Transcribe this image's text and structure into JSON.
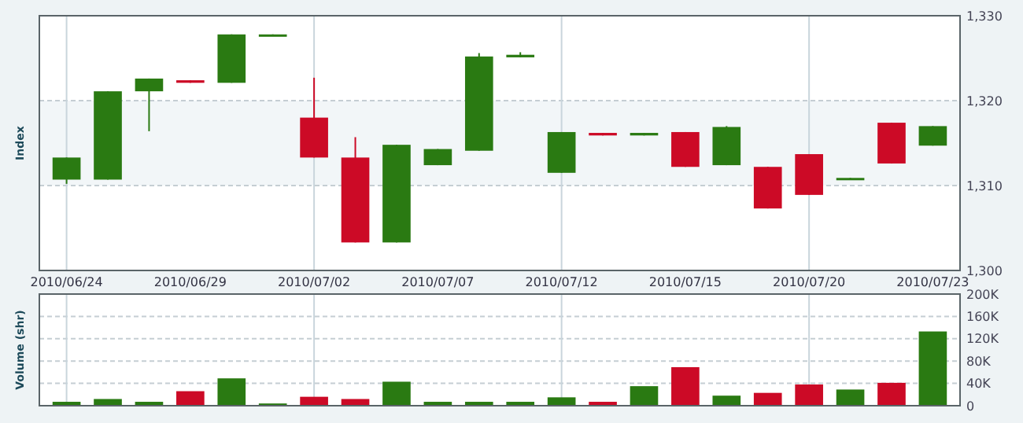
{
  "chart_data": [
    {
      "type": "candlestick",
      "ylabel": "Index",
      "categories": [
        "2010/06/24",
        null,
        null,
        "2010/06/29",
        null,
        null,
        "2010/07/02",
        null,
        null,
        "2010/07/07",
        null,
        null,
        "2010/07/12",
        null,
        null,
        "2010/07/15",
        null,
        null,
        "2010/07/20",
        null,
        null,
        "2010/07/23"
      ],
      "ohlc": [
        [
          1310.7,
          1313.3,
          1310.2,
          1313.3
        ],
        [
          1310.7,
          1321.1,
          1310.7,
          1321.1
        ],
        [
          1321.1,
          1322.6,
          1316.4,
          1322.6
        ],
        [
          1322.4,
          1322.4,
          1322.1,
          1322.1
        ],
        [
          1322.1,
          1327.8,
          1322.1,
          1327.8
        ],
        [
          1327.7,
          1327.8,
          1327.7,
          1327.8
        ],
        [
          1318.0,
          1322.7,
          1313.3,
          1313.3
        ],
        [
          1313.3,
          1315.7,
          1303.3,
          1303.3
        ],
        [
          1303.3,
          1314.8,
          1303.3,
          1314.8
        ],
        [
          1312.4,
          1314.3,
          1312.4,
          1314.3
        ],
        [
          1314.1,
          1325.6,
          1314.1,
          1325.2
        ],
        [
          1325.1,
          1325.7,
          1325.1,
          1325.4
        ],
        [
          1311.5,
          1316.3,
          1311.5,
          1316.3
        ],
        [
          1316.2,
          1316.2,
          1315.9,
          1315.9
        ],
        [
          1315.9,
          1316.2,
          1315.9,
          1316.2
        ],
        [
          1316.3,
          1316.3,
          1312.2,
          1312.2
        ],
        [
          1312.4,
          1317.0,
          1312.4,
          1316.9
        ],
        [
          1312.2,
          1312.2,
          1307.3,
          1307.3
        ],
        [
          1313.7,
          1313.7,
          1308.9,
          1308.9
        ],
        [
          1310.8,
          1310.9,
          1310.8,
          1310.9
        ],
        [
          1317.4,
          1317.4,
          1312.6,
          1312.6
        ],
        [
          1314.7,
          1317.0,
          1314.7,
          1317.0
        ]
      ],
      "colors": [
        "#2a7a12",
        "#2a7a12",
        "#2a7a12",
        "#cc0a26",
        "#2a7a12",
        "#2a7a12",
        "#cc0a26",
        "#cc0a26",
        "#2a7a12",
        "#2a7a12",
        "#2a7a12",
        "#2a7a12",
        "#2a7a12",
        "#cc0a26",
        "#2a7a12",
        "#cc0a26",
        "#2a7a12",
        "#cc0a26",
        "#cc0a26",
        "#2a7a12",
        "#cc0a26",
        "#2a7a12"
      ],
      "ylim": [
        1300,
        1330
      ],
      "yticks": [
        {
          "value": 1300,
          "label": "1,300"
        },
        {
          "value": 1310,
          "label": "1,310"
        },
        {
          "value": 1320,
          "label": "1,320"
        },
        {
          "value": 1330,
          "label": "1,330"
        }
      ],
      "bands": [
        {
          "axis": "y",
          "from": 1310,
          "to": 1320,
          "color": "#f2f6f8"
        }
      ],
      "grid": true
    },
    {
      "type": "bar",
      "ylabel": "Volume (shr)",
      "categories": [
        "2010/06/24",
        null,
        null,
        "2010/06/29",
        null,
        null,
        "2010/07/02",
        null,
        null,
        "2010/07/07",
        null,
        null,
        "2010/07/12",
        null,
        null,
        "2010/07/15",
        null,
        null,
        "2010/07/20",
        null,
        null,
        "2010/07/23"
      ],
      "values": [
        7000,
        12000,
        7000,
        26000,
        49000,
        4000,
        16000,
        12000,
        43000,
        7000,
        7000,
        7000,
        15000,
        7000,
        35000,
        69000,
        18000,
        23000,
        38000,
        29000,
        41000,
        133000
      ],
      "colors": [
        "#2a7a12",
        "#2a7a12",
        "#2a7a12",
        "#cc0a26",
        "#2a7a12",
        "#2a7a12",
        "#cc0a26",
        "#cc0a26",
        "#2a7a12",
        "#2a7a12",
        "#2a7a12",
        "#2a7a12",
        "#2a7a12",
        "#cc0a26",
        "#2a7a12",
        "#cc0a26",
        "#2a7a12",
        "#cc0a26",
        "#cc0a26",
        "#2a7a12",
        "#cc0a26",
        "#2a7a12"
      ],
      "ylim": [
        0,
        200000
      ],
      "yticks": [
        {
          "value": 0,
          "label": "0"
        },
        {
          "value": 40000,
          "label": "40K"
        },
        {
          "value": 80000,
          "label": "80K"
        },
        {
          "value": 120000,
          "label": "120K"
        },
        {
          "value": 160000,
          "label": "160K"
        },
        {
          "value": 200000,
          "label": "200K"
        }
      ],
      "tick_labels": "y",
      "grid": true
    }
  ]
}
